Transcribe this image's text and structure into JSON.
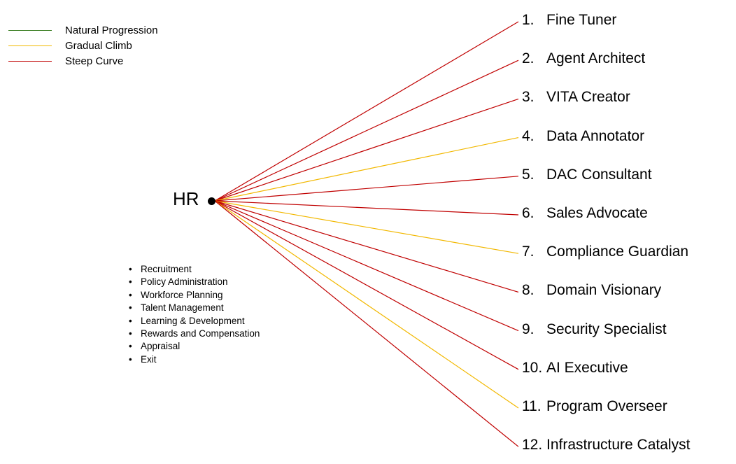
{
  "colors": {
    "natural": "#3a7d22",
    "gradual": "#f2b800",
    "steep": "#c00000",
    "background": "#ffffff",
    "text": "#000000"
  },
  "legend": [
    {
      "label": "Natural Progression",
      "type": "natural"
    },
    {
      "label": "Gradual Climb",
      "type": "gradual"
    },
    {
      "label": "Steep Curve",
      "type": "steep"
    }
  ],
  "root": {
    "label": "HR"
  },
  "functions": [
    "Recruitment",
    "Policy Administration",
    "Workforce Planning",
    "Talent Management",
    "Learning & Development",
    "Rewards and Compensation",
    "Appraisal",
    "Exit"
  ],
  "roles": [
    {
      "number": "1.",
      "label": "Fine Tuner",
      "curve": "steep"
    },
    {
      "number": "2.",
      "label": "Agent Architect",
      "curve": "steep"
    },
    {
      "number": "3.",
      "label": "VITA Creator",
      "curve": "steep"
    },
    {
      "number": "4.",
      "label": "Data Annotator",
      "curve": "gradual"
    },
    {
      "number": "5.",
      "label": "DAC Consultant",
      "curve": "steep"
    },
    {
      "number": "6.",
      "label": "Sales Advocate",
      "curve": "steep"
    },
    {
      "number": "7.",
      "label": "Compliance Guardian",
      "curve": "gradual"
    },
    {
      "number": "8.",
      "label": "Domain Visionary",
      "curve": "steep"
    },
    {
      "number": "9.",
      "label": "Security Specialist",
      "curve": "steep"
    },
    {
      "number": "10.",
      "label": "AI Executive",
      "curve": "steep"
    },
    {
      "number": "11.",
      "label": "Program Overseer",
      "curve": "gradual"
    },
    {
      "number": "12.",
      "label": "Infrastructure Catalyst",
      "curve": "steep"
    }
  ]
}
